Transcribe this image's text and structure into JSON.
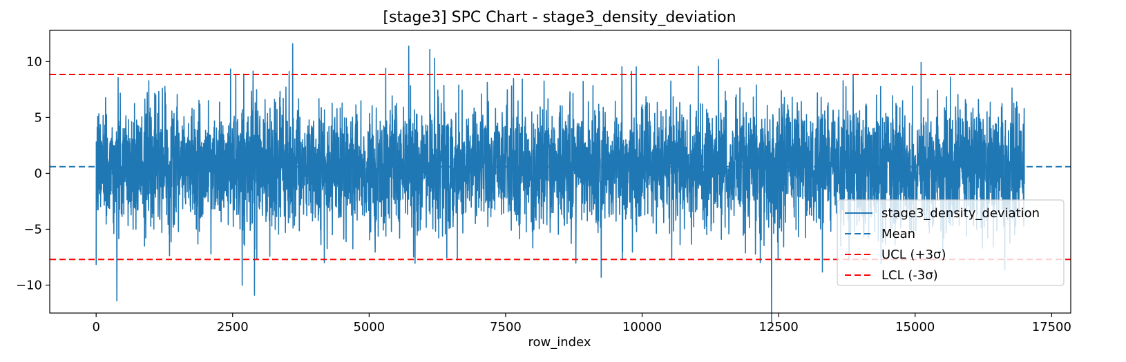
{
  "chart_data": {
    "type": "line",
    "title": "[stage3] SPC Chart - stage3_density_deviation",
    "xlabel": "row_index",
    "ylabel": "",
    "xlim": [
      -850,
      17850
    ],
    "ylim": [
      -12.5,
      12.8
    ],
    "x_ticks": [
      0,
      2500,
      5000,
      7500,
      10000,
      12500,
      15000,
      17500
    ],
    "x_tick_labels": [
      "0",
      "2500",
      "5000",
      "7500",
      "10000",
      "12500",
      "15000",
      "17500"
    ],
    "y_ticks": [
      -10,
      -5,
      0,
      5,
      10
    ],
    "y_tick_labels": [
      "−10",
      "−5",
      "0",
      "5",
      "10"
    ],
    "grid": false,
    "legend_position": "lower-right",
    "series": [
      {
        "name": "stage3_density_deviation",
        "kind": "signal",
        "color": "#1f77b4",
        "n_points": 17000,
        "x_range": [
          0,
          17000
        ],
        "notable_points": [
          {
            "x": 0,
            "y": -8.2
          },
          {
            "x": 380,
            "y": -11.4
          },
          {
            "x": 2900,
            "y": -10.9
          },
          {
            "x": 3600,
            "y": 11.6
          },
          {
            "x": 6200,
            "y": 10.3
          },
          {
            "x": 9250,
            "y": -9.3
          },
          {
            "x": 11400,
            "y": 10.2
          }
        ],
        "typical_band": [
          -4.5,
          5.5
        ]
      },
      {
        "name": "Mean",
        "kind": "hline",
        "value": 0.6,
        "color": "#1f77b4",
        "dash": "dashed"
      },
      {
        "name": "UCL (+3σ)",
        "kind": "hline",
        "value": 8.85,
        "color": "#ff0000",
        "dash": "dashed"
      },
      {
        "name": "LCL (-3σ)",
        "kind": "hline",
        "value": -7.7,
        "color": "#ff0000",
        "dash": "dashed"
      }
    ]
  }
}
